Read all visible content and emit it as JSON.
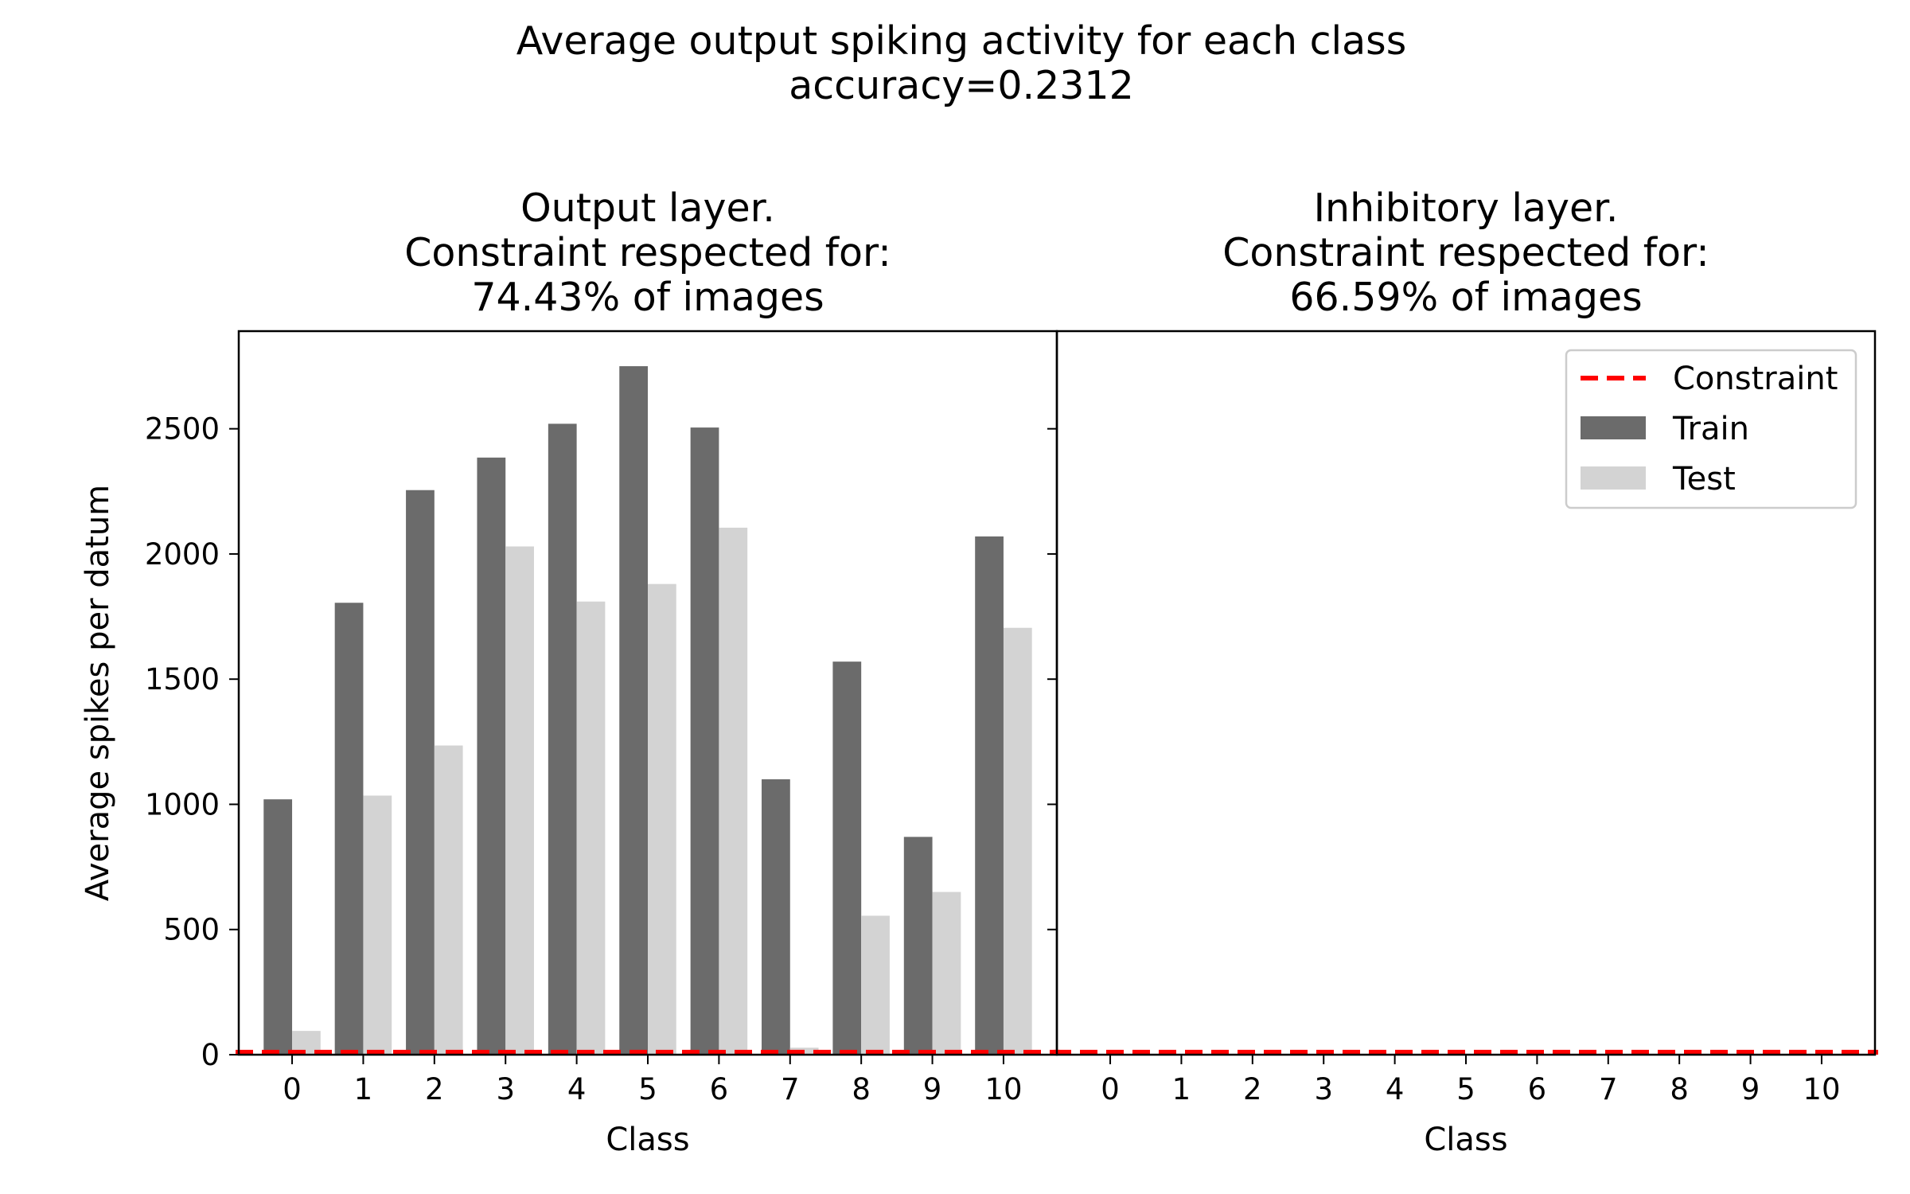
{
  "figure": {
    "suptitle_line1": "Average output spiking activity for each class",
    "suptitle_line2": "accuracy=0.2312"
  },
  "chart_data": [
    {
      "type": "bar",
      "title_lines": [
        "Output layer.",
        "Constraint respected for:",
        "74.43% of images"
      ],
      "xlabel": "Class",
      "ylabel": "Average spikes per datum",
      "categories": [
        "0",
        "1",
        "2",
        "3",
        "4",
        "5",
        "6",
        "7",
        "8",
        "9",
        "10"
      ],
      "series": [
        {
          "name": "Train",
          "color": "#6b6b6b",
          "values": [
            1020,
            1805,
            2255,
            2385,
            2520,
            2750,
            2505,
            1100,
            1570,
            870,
            2070
          ]
        },
        {
          "name": "Test",
          "color": "#d3d3d3",
          "values": [
            95,
            1035,
            1235,
            2030,
            1810,
            1880,
            2105,
            28,
            555,
            650,
            1705
          ]
        }
      ],
      "constraint": {
        "name": "Constraint",
        "color": "#ff0000",
        "value": 10
      },
      "yticks": [
        0,
        500,
        1000,
        1500,
        2000,
        2500
      ],
      "ylim": [
        0,
        2890
      ],
      "grid": false
    },
    {
      "type": "bar",
      "title_lines": [
        "Inhibitory layer.",
        "Constraint respected for:",
        "66.59% of images"
      ],
      "xlabel": "Class",
      "categories": [
        "0",
        "1",
        "2",
        "3",
        "4",
        "5",
        "6",
        "7",
        "8",
        "9",
        "10"
      ],
      "series": [
        {
          "name": "Train",
          "color": "#6b6b6b",
          "values": [
            0,
            0,
            0,
            0,
            0,
            0,
            0,
            0,
            0,
            0,
            0
          ]
        },
        {
          "name": "Test",
          "color": "#d3d3d3",
          "values": [
            0,
            0,
            0,
            0,
            0,
            0,
            0,
            0,
            0,
            0,
            0
          ]
        }
      ],
      "constraint": {
        "name": "Constraint",
        "color": "#ff0000",
        "value": 10
      },
      "ylim": [
        0,
        2890
      ],
      "grid": false,
      "legend": {
        "placement": "top-right",
        "entries": [
          {
            "label": "Constraint",
            "kind": "dashed-line",
            "color": "#ff0000"
          },
          {
            "label": "Train",
            "kind": "patch",
            "color": "#6b6b6b"
          },
          {
            "label": "Test",
            "kind": "patch",
            "color": "#d3d3d3"
          }
        ]
      }
    }
  ]
}
